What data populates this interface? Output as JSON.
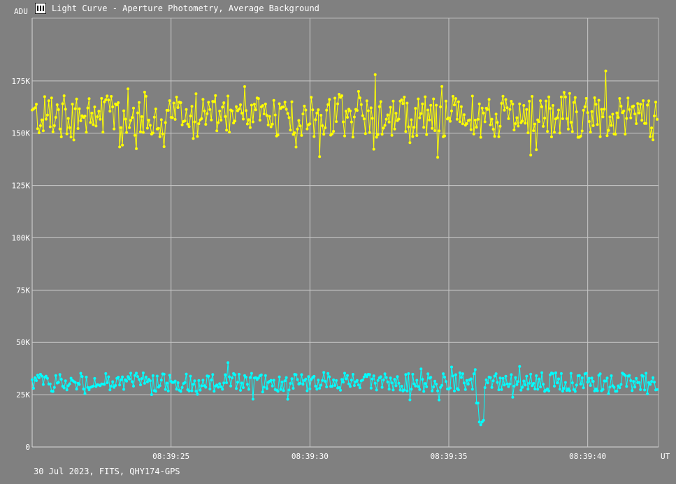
{
  "window": {
    "title": "Light Curve - Aperture Photometry, Average Background",
    "icon": "light-curve-app-icon"
  },
  "footer": {
    "text": "30 Jul 2023, FITS, QHY174-GPS"
  },
  "chart_data": {
    "type": "line",
    "title": "Light Curve - Aperture Photometry, Average Background",
    "ylabel": "ADU",
    "xlabel": "UT",
    "ylim": [
      0,
      205000
    ],
    "xlim": [
      20.0,
      42.55
    ],
    "y_ticks": [
      "0",
      "25K",
      "50K",
      "75K",
      "100K",
      "125K",
      "150K",
      "175K"
    ],
    "y_tick_values": [
      0,
      25000,
      50000,
      75000,
      100000,
      125000,
      150000,
      175000
    ],
    "x_ticks": [
      "08:39:25",
      "08:39:30",
      "08:39:35",
      "08:39:40"
    ],
    "x_tick_values": [
      25,
      30,
      35,
      40
    ],
    "grid": true,
    "markers": true,
    "series": [
      {
        "color": "#ffff00",
        "x_start": 20.0,
        "x_step": 0.05,
        "values": []
      },
      {
        "color": "#00ffff",
        "x_start": 20.0,
        "x_step": 0.05,
        "values": []
      }
    ]
  }
}
